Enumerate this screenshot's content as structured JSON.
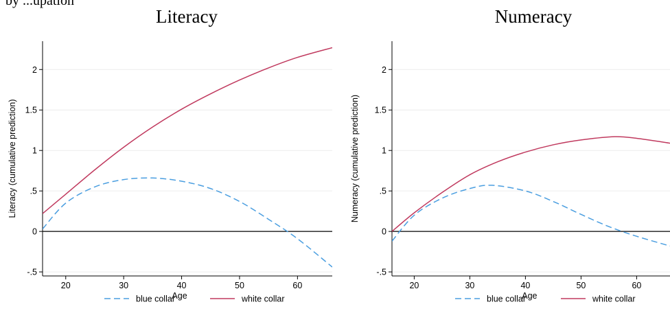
{
  "caption": "by ...upation",
  "chart_data": [
    {
      "type": "line",
      "title": "Literacy",
      "xlabel": "Age",
      "ylabel": "Literacy (cumulative prediction)",
      "xlim": [
        16,
        66
      ],
      "ylim": [
        -0.55,
        2.35
      ],
      "xticks": [
        20,
        30,
        40,
        50,
        60
      ],
      "xtick_labels": [
        "20",
        "30",
        "40",
        "50",
        "60"
      ],
      "yticks": [
        -0.5,
        0,
        0.5,
        1,
        1.5,
        2
      ],
      "ytick_labels": [
        "-.5",
        "0",
        ".5",
        "1",
        "1.5",
        "2"
      ],
      "grid": true,
      "zero_line": true,
      "legend_position": "bottom",
      "series": [
        {
          "name": "blue collar",
          "style": "dashed",
          "color": "#4a9ee0",
          "x": [
            16,
            20,
            25,
            30,
            35,
            40,
            45,
            50,
            55,
            60,
            66
          ],
          "y": [
            0.03,
            0.35,
            0.55,
            0.64,
            0.66,
            0.62,
            0.53,
            0.37,
            0.15,
            -0.09,
            -0.44
          ]
        },
        {
          "name": "white collar",
          "style": "solid",
          "color": "#c0395e",
          "x": [
            16,
            20,
            25,
            30,
            35,
            40,
            45,
            50,
            55,
            60,
            66
          ],
          "y": [
            0.22,
            0.46,
            0.76,
            1.04,
            1.29,
            1.51,
            1.7,
            1.87,
            2.02,
            2.15,
            2.27
          ]
        }
      ]
    },
    {
      "type": "line",
      "title": "Numeracy",
      "xlabel": "Age",
      "ylabel": "Numeracy (cumulative prediction)",
      "xlim": [
        16,
        66
      ],
      "ylim": [
        -0.55,
        2.35
      ],
      "xticks": [
        20,
        30,
        40,
        50,
        60
      ],
      "xtick_labels": [
        "20",
        "30",
        "40",
        "50",
        "60"
      ],
      "yticks": [
        -0.5,
        0,
        0.5,
        1,
        1.5,
        2
      ],
      "ytick_labels": [
        "-.5",
        "0",
        ".5",
        "1",
        "1.5",
        "2"
      ],
      "grid": true,
      "zero_line": true,
      "legend_position": "bottom",
      "series": [
        {
          "name": "blue collar",
          "style": "dashed",
          "color": "#4a9ee0",
          "x": [
            16,
            20,
            25,
            30,
            34,
            40,
            45,
            50,
            55,
            60,
            66
          ],
          "y": [
            -0.12,
            0.2,
            0.41,
            0.53,
            0.57,
            0.5,
            0.37,
            0.21,
            0.06,
            -0.06,
            -0.18
          ]
        },
        {
          "name": "white collar",
          "style": "solid",
          "color": "#c0395e",
          "x": [
            16,
            20,
            25,
            30,
            35,
            40,
            45,
            50,
            56,
            60,
            66
          ],
          "y": [
            0.0,
            0.23,
            0.48,
            0.7,
            0.86,
            0.98,
            1.07,
            1.13,
            1.17,
            1.15,
            1.09
          ]
        }
      ]
    }
  ]
}
